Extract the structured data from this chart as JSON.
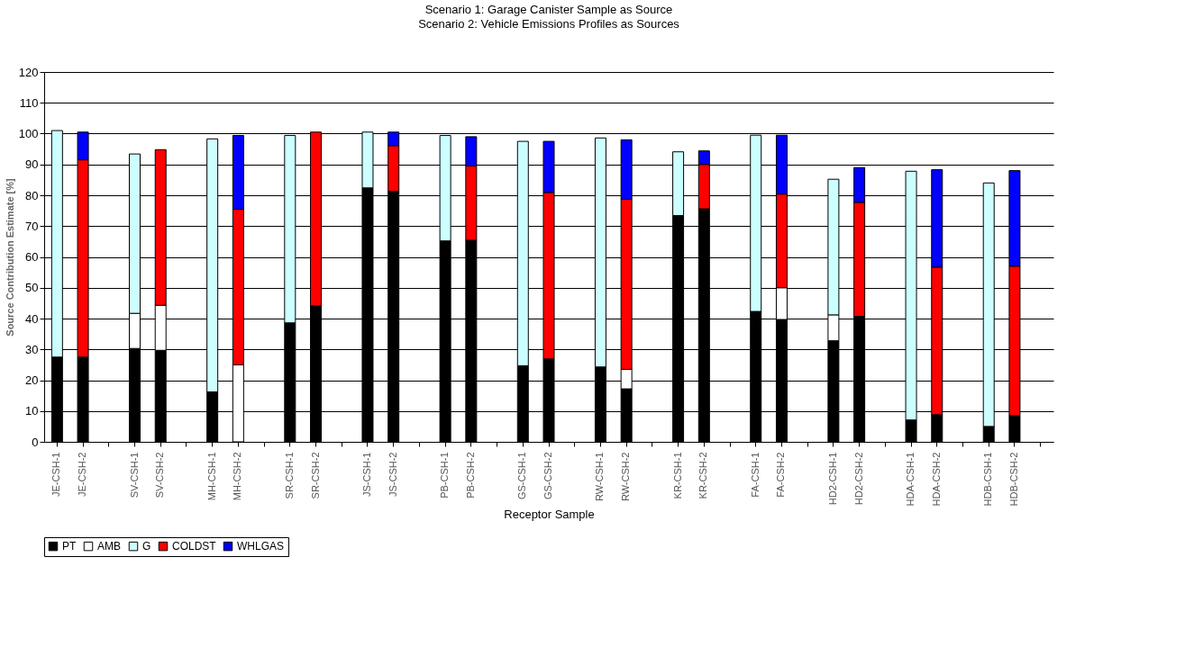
{
  "chart_data": {
    "type": "bar",
    "stacked": true,
    "title": "Scenario 1: Garage Canister Sample as Source",
    "subtitle": "Scenario 2: Vehicle Emissions Profiles as Sources",
    "xlabel": "Receptor Sample",
    "ylabel": "Source Contribution Estimate [%]",
    "categories": [
      "JE-CSH-1",
      "JE-CSH-2",
      null,
      "SV-CSH-1",
      "SV-CSH-2",
      null,
      "MH-CSH-1",
      "MH-CSH-2",
      null,
      "SR-CSH-1",
      "SR-CSH-2",
      null,
      "JS-CSH-1",
      "JS-CSH-2",
      null,
      "PB-CSH-1",
      "PB-CSH-2",
      null,
      "GS-CSH-1",
      "GS-CSH-2",
      null,
      "RW-CSH-1",
      "RW-CSH-2",
      null,
      "KR-CSH-1",
      "KR-CSH-2",
      null,
      "FA-CSH-1",
      "FA-CSH-2",
      null,
      "HD2-CSH-1",
      "HD2-CSH-2",
      null,
      "HDA-CSH-1",
      "HDA-CSH-2",
      null,
      "HDB-CSH-1",
      "HDB-CSH-2",
      null
    ],
    "series": [
      {
        "name": "PT",
        "color": "#000000",
        "values": [
          27.5,
          27.5,
          null,
          30.3,
          29.7,
          null,
          16.2,
          null,
          null,
          38.6,
          44.1,
          null,
          82.4,
          81.3,
          null,
          65.2,
          65.4,
          null,
          24.7,
          26.9,
          null,
          24.3,
          17.2,
          null,
          73.4,
          75.6,
          null,
          42.3,
          39.7,
          null,
          32.8,
          40.7,
          null,
          7.1,
          8.8,
          null,
          5,
          8.5,
          null
        ]
      },
      {
        "name": "AMB",
        "color": "#ffffff",
        "values": [
          null,
          null,
          null,
          11.4,
          14.6,
          null,
          null,
          25,
          null,
          null,
          null,
          null,
          null,
          null,
          null,
          null,
          null,
          null,
          null,
          null,
          null,
          null,
          6.3,
          null,
          null,
          null,
          null,
          null,
          10.3,
          null,
          8.4,
          null,
          null,
          null,
          null,
          null,
          null,
          null,
          null
        ]
      },
      {
        "name": "G",
        "color": "#ccffff",
        "values": [
          73.5,
          null,
          null,
          51.7,
          null,
          null,
          82.1,
          null,
          null,
          60.8,
          null,
          null,
          18.1,
          null,
          null,
          34.2,
          null,
          null,
          72.8,
          null,
          null,
          74.3,
          null,
          null,
          20.7,
          null,
          null,
          57.2,
          null,
          null,
          44,
          null,
          null,
          80.7,
          null,
          null,
          79,
          null,
          null
        ]
      },
      {
        "name": "COLDST",
        "color": "#ff0000",
        "values": [
          null,
          64,
          null,
          null,
          50.5,
          null,
          null,
          50.5,
          null,
          null,
          56.4,
          null,
          null,
          14.8,
          null,
          null,
          24.1,
          null,
          null,
          54,
          null,
          null,
          55.2,
          null,
          null,
          14.4,
          null,
          null,
          30.4,
          null,
          null,
          37,
          null,
          null,
          47.9,
          null,
          null,
          48.5,
          null
        ]
      },
      {
        "name": "WHLGAS",
        "color": "#0000ff",
        "values": [
          null,
          9,
          null,
          null,
          null,
          null,
          null,
          23.9,
          null,
          null,
          null,
          null,
          null,
          4.4,
          null,
          null,
          9.5,
          null,
          null,
          16.6,
          null,
          null,
          19.3,
          null,
          null,
          4.4,
          null,
          null,
          19.1,
          null,
          null,
          11.3,
          null,
          null,
          31.6,
          null,
          null,
          31,
          null
        ]
      }
    ],
    "ylim": [
      0,
      120
    ],
    "yticks": [
      0,
      10,
      20,
      30,
      40,
      50,
      60,
      70,
      80,
      90,
      100,
      110,
      120
    ],
    "grid": "y",
    "legend": "bottom"
  }
}
